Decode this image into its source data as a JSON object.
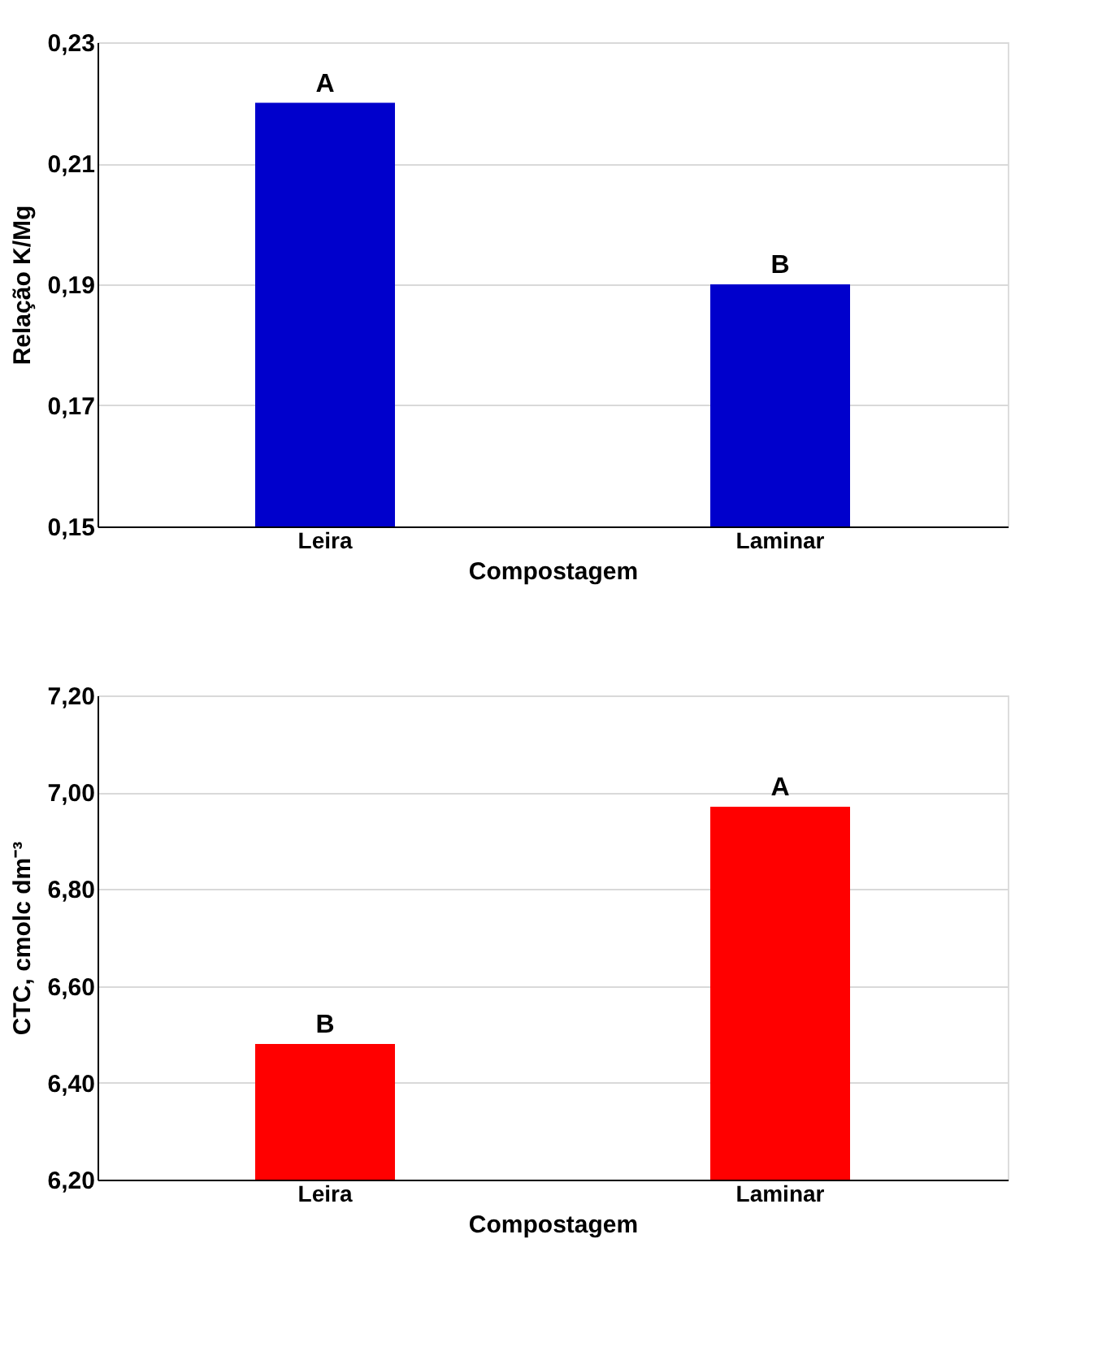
{
  "chart_data": [
    {
      "type": "bar",
      "xlabel": "Compostagem",
      "ylabel": "Relação K/Mg",
      "categories": [
        "Leira",
        "Laminar"
      ],
      "series": [
        {
          "color": "#0000cc",
          "values": [
            0.22,
            0.19
          ]
        }
      ],
      "ylim": [
        0.15,
        0.23
      ],
      "yticks": [
        {
          "value": 0.15,
          "label": "0,15"
        },
        {
          "value": 0.17,
          "label": "0,17"
        },
        {
          "value": 0.19,
          "label": "0,19"
        },
        {
          "value": 0.21,
          "label": "0,21"
        },
        {
          "value": 0.23,
          "label": "0,23"
        }
      ],
      "grid": "y",
      "annotations": [
        {
          "text": "A",
          "x": "Leira",
          "y": 0.22
        },
        {
          "text": "B",
          "x": "Laminar",
          "y": 0.19
        }
      ]
    },
    {
      "type": "bar",
      "xlabel": "Compostagem",
      "ylabel": "CTC, cmolc dm⁻³",
      "categories": [
        "Leira",
        "Laminar"
      ],
      "series": [
        {
          "color": "#ff0000",
          "values": [
            6.48,
            6.97
          ]
        }
      ],
      "ylim": [
        6.2,
        7.2
      ],
      "yticks": [
        {
          "value": 6.2,
          "label": "6,20"
        },
        {
          "value": 6.4,
          "label": "6,40"
        },
        {
          "value": 6.6,
          "label": "6,60"
        },
        {
          "value": 6.8,
          "label": "6,80"
        },
        {
          "value": 7.0,
          "label": "7,00"
        },
        {
          "value": 7.2,
          "label": "7,20"
        }
      ],
      "grid": "y",
      "annotations": [
        {
          "text": "B",
          "x": "Leira",
          "y": 6.48
        },
        {
          "text": "A",
          "x": "Laminar",
          "y": 6.97
        }
      ]
    }
  ]
}
